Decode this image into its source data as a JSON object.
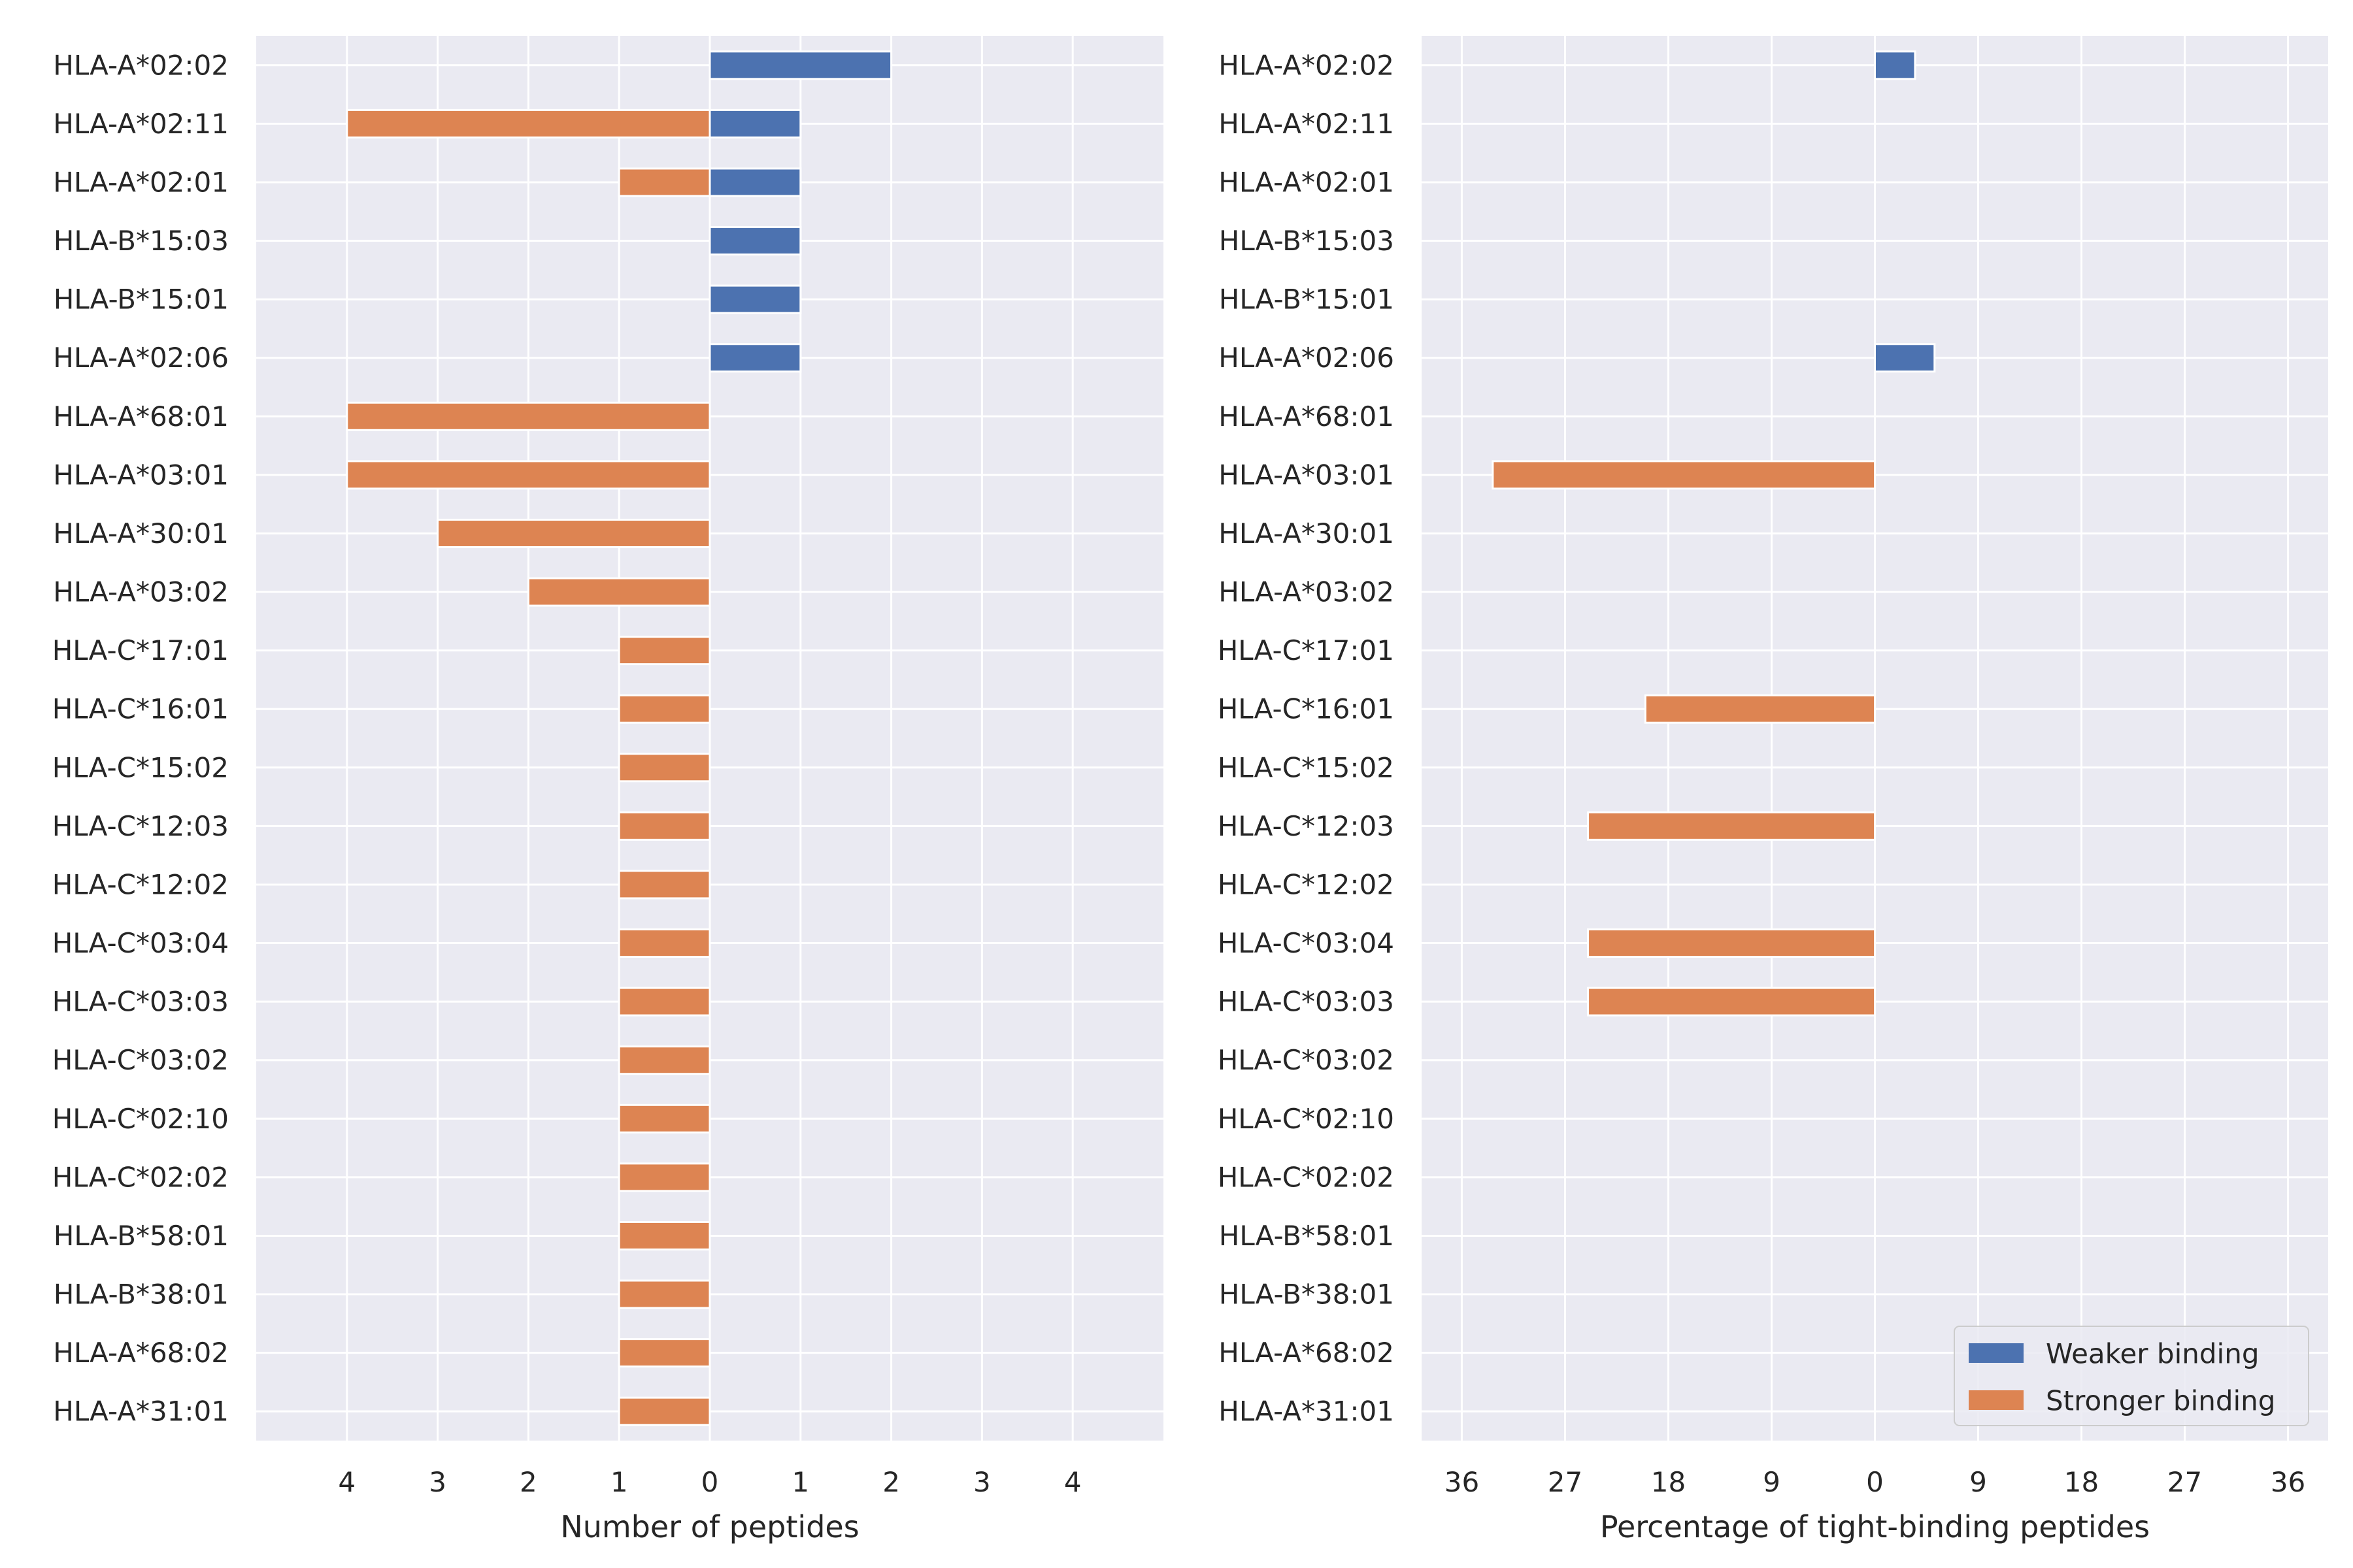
{
  "chart_data": [
    {
      "type": "bar",
      "orientation": "horizontal-diverging",
      "categories": [
        "HLA-A*02:02",
        "HLA-A*02:11",
        "HLA-A*02:01",
        "HLA-B*15:03",
        "HLA-B*15:01",
        "HLA-A*02:06",
        "HLA-A*68:01",
        "HLA-A*03:01",
        "HLA-A*30:01",
        "HLA-A*03:02",
        "HLA-C*17:01",
        "HLA-C*16:01",
        "HLA-C*15:02",
        "HLA-C*12:03",
        "HLA-C*12:02",
        "HLA-C*03:04",
        "HLA-C*03:03",
        "HLA-C*03:02",
        "HLA-C*02:10",
        "HLA-C*02:02",
        "HLA-B*58:01",
        "HLA-B*38:01",
        "HLA-A*68:02",
        "HLA-A*31:01"
      ],
      "series": [
        {
          "name": "Weaker binding",
          "color": "#4c72b0",
          "direction": "right",
          "values": [
            2,
            1,
            1,
            1,
            1,
            1,
            0,
            0,
            0,
            0,
            0,
            0,
            0,
            0,
            0,
            0,
            0,
            0,
            0,
            0,
            0,
            0,
            0,
            0
          ]
        },
        {
          "name": "Stronger binding",
          "color": "#dd8452",
          "direction": "left",
          "values": [
            0,
            4,
            1,
            0,
            0,
            0,
            4,
            4,
            3,
            2,
            1,
            1,
            1,
            1,
            1,
            1,
            1,
            1,
            1,
            1,
            1,
            1,
            1,
            1
          ]
        }
      ],
      "xlabel": "Number of peptides",
      "xticks": [
        -4,
        -3,
        -2,
        -1,
        0,
        1,
        2,
        3,
        4
      ],
      "xtick_labels": [
        "4",
        "3",
        "2",
        "1",
        "0",
        "1",
        "2",
        "3",
        "4"
      ],
      "xlim": [
        -5,
        5
      ],
      "grid": true
    },
    {
      "type": "bar",
      "orientation": "horizontal-diverging",
      "categories": [
        "HLA-A*02:02",
        "HLA-A*02:11",
        "HLA-A*02:01",
        "HLA-B*15:03",
        "HLA-B*15:01",
        "HLA-A*02:06",
        "HLA-A*68:01",
        "HLA-A*03:01",
        "HLA-A*30:01",
        "HLA-A*03:02",
        "HLA-C*17:01",
        "HLA-C*16:01",
        "HLA-C*15:02",
        "HLA-C*12:03",
        "HLA-C*12:02",
        "HLA-C*03:04",
        "HLA-C*03:03",
        "HLA-C*03:02",
        "HLA-C*02:10",
        "HLA-C*02:02",
        "HLA-B*58:01",
        "HLA-B*38:01",
        "HLA-A*68:02",
        "HLA-A*31:01"
      ],
      "series": [
        {
          "name": "Weaker binding",
          "color": "#4c72b0",
          "direction": "right",
          "values": [
            3.5,
            0,
            0,
            0,
            0,
            5.2,
            0,
            0,
            0,
            0,
            0,
            0,
            0,
            0,
            0,
            0,
            0,
            0,
            0,
            0,
            0,
            0,
            0,
            0
          ]
        },
        {
          "name": "Stronger binding",
          "color": "#dd8452",
          "direction": "left",
          "values": [
            0,
            0,
            0,
            0,
            0,
            0,
            0,
            33.3,
            0,
            0,
            0,
            20,
            0,
            25,
            0,
            25,
            25,
            0,
            0,
            0,
            0,
            0,
            0,
            0
          ]
        }
      ],
      "xlabel": "Percentage of tight-binding peptides",
      "xticks": [
        -36,
        -27,
        -18,
        -9,
        0,
        9,
        18,
        27,
        36
      ],
      "xtick_labels": [
        "36",
        "27",
        "18",
        "9",
        "0",
        "9",
        "18",
        "27",
        "36"
      ],
      "xlim": [
        -39.5,
        39.5
      ],
      "grid": true,
      "legend": {
        "placement": "bottom-right",
        "entries": [
          {
            "label": "Weaker binding",
            "color": "#4c72b0"
          },
          {
            "label": "Stronger binding",
            "color": "#dd8452"
          }
        ]
      }
    }
  ],
  "colors": {
    "panel_background": "#eaeaf2",
    "grid": "#ffffff",
    "text": "#262626"
  }
}
